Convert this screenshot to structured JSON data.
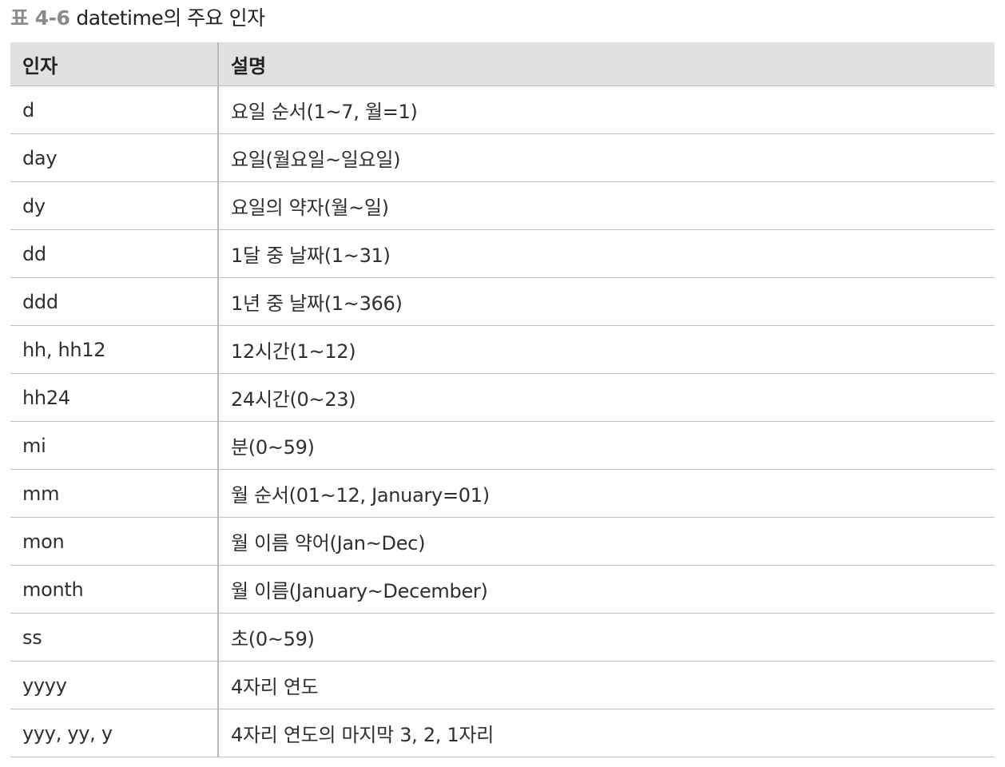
{
  "caption": {
    "number": "표 4-6",
    "title": "datetime의 주요 인자"
  },
  "table": {
    "headers": [
      "인자",
      "설명"
    ],
    "rows": [
      [
        "d",
        "요일 순서(1~7, 월=1)"
      ],
      [
        "day",
        "요일(월요일~일요일)"
      ],
      [
        "dy",
        "요일의 약자(월~일)"
      ],
      [
        "dd",
        "1달 중 날짜(1~31)"
      ],
      [
        "ddd",
        "1년 중 날짜(1~366)"
      ],
      [
        "hh, hh12",
        "12시간(1~12)"
      ],
      [
        "hh24",
        "24시간(0~23)"
      ],
      [
        "mi",
        "분(0~59)"
      ],
      [
        "mm",
        "월 순서(01~12, January=01)"
      ],
      [
        "mon",
        "월 이름 약어(Jan~Dec)"
      ],
      [
        "month",
        "월 이름(January~December)"
      ],
      [
        "ss",
        "초(0~59)"
      ],
      [
        "yyyy",
        "4자리 연도"
      ],
      [
        "yyy, yy, y",
        "4자리 연도의 마지막 3, 2, 1자리"
      ]
    ]
  }
}
